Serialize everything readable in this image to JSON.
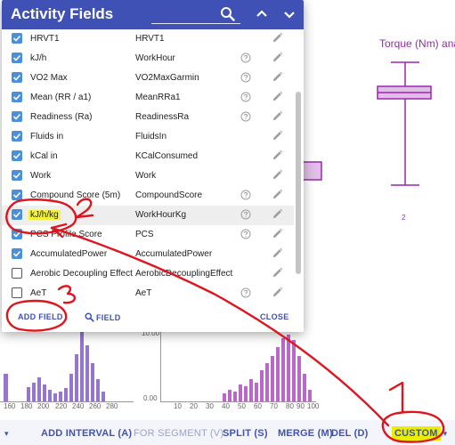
{
  "dialog": {
    "title": "Activity Fields",
    "icons": {
      "search": "search-icon",
      "up": "chevron-up-icon",
      "down": "chevron-down-icon"
    },
    "rows": [
      {
        "name": "HRVT1",
        "code": "HRVT1",
        "checked": true,
        "help": false
      },
      {
        "name": "kJ/h",
        "code": "WorkHour",
        "checked": true,
        "help": true
      },
      {
        "name": "VO2 Max",
        "code": "VO2MaxGarmin",
        "checked": true,
        "help": true
      },
      {
        "name": "Mean (RR / a1)",
        "code": "MeanRRa1",
        "checked": true,
        "help": true
      },
      {
        "name": "Readiness (Ra)",
        "code": "ReadinessRa",
        "checked": true,
        "help": true
      },
      {
        "name": "Fluids in",
        "code": "FluidsIn",
        "checked": true,
        "help": false
      },
      {
        "name": "kCal in",
        "code": "KCalConsumed",
        "checked": true,
        "help": false
      },
      {
        "name": "Work",
        "code": "Work",
        "checked": true,
        "help": false
      },
      {
        "name": "Compound Score (5m)",
        "code": "CompoundScore",
        "checked": true,
        "help": true
      },
      {
        "name": "kJ/h/kg",
        "code": "WorkHourKg",
        "checked": true,
        "help": true
      },
      {
        "name": "PCS Profile Score",
        "code": "PCS",
        "checked": true,
        "help": true
      },
      {
        "name": "AccumulatedPower",
        "code": "AccumulatedPower",
        "checked": true,
        "help": false
      },
      {
        "name": "Aerobic Decoupling Effect",
        "code": "AerobicDecouplingEffect",
        "checked": false,
        "help": false
      },
      {
        "name": "AeT",
        "code": "AeT",
        "checked": false,
        "help": true
      }
    ],
    "add_field": "ADD FIELD",
    "field": "FIELD",
    "close": "CLOSE"
  },
  "background": {
    "chart_title": "Torque (Nm) anal",
    "x_ticks_left": [
      "160",
      "180",
      "200",
      "220",
      "240",
      "260",
      "280"
    ],
    "x_ticks_right": [
      "10",
      "20",
      "30",
      "40",
      "50",
      "60",
      "70",
      "80",
      "90",
      "100"
    ],
    "y_tick_10": "10.00",
    "y_tick_0": "0.00",
    "box_label": "2"
  },
  "toolbar": {
    "add_interval": "ADD INTERVAL (A)",
    "for_segment": "FOR SEGMENT (V)",
    "split": "SPLIT (S)",
    "merge": "MERGE (M)",
    "del": "DEL (D)",
    "custom": "CUSTOM"
  },
  "annotations": {
    "n1": "1",
    "n2": "2",
    "n3": "3"
  },
  "colors": {
    "primary": "#3f51b5",
    "checkbox": "#4a8fdc",
    "chart": "#9c27b0",
    "annotation": "#e0141e",
    "highlight": "#f2f23a"
  }
}
